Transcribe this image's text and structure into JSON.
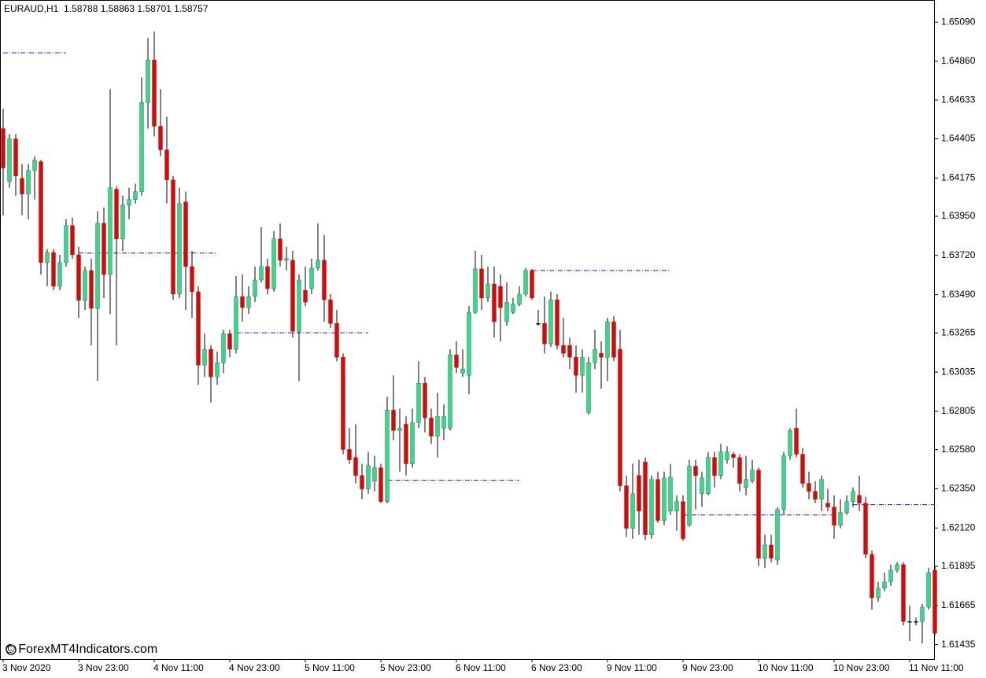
{
  "chart_data": {
    "type": "candlestick",
    "title": "EURAUD,H1  1.58788 1.58863 1.58701 1.58757",
    "watermark": "© ForexMT4Indicators.com",
    "up_color": "#3bd68c",
    "down_color": "#d20a0a",
    "level_color": "#1a1acc",
    "ylim": [
      1.6135,
      1.6522
    ],
    "yticks": [
      {
        "value": 1.6509,
        "label": "1.65090"
      },
      {
        "value": 1.6486,
        "label": "1.64860"
      },
      1.64633,
      1.64405,
      1.64175,
      {
        "value": 1.6395,
        "label": "1.63950"
      },
      {
        "value": 1.6372,
        "label": "1.63720"
      },
      {
        "value": 1.6349,
        "label": "1.63490"
      },
      1.63265,
      1.63035,
      1.62805,
      {
        "value": 1.6258,
        "label": "1.62580"
      },
      {
        "value": 1.6235,
        "label": "1.62350"
      },
      {
        "value": 1.6212,
        "label": "1.62120"
      },
      1.61895,
      1.61665,
      1.61435
    ],
    "categories": [
      "3 Nov 2020",
      null,
      null,
      null,
      null,
      null,
      null,
      null,
      null,
      null,
      null,
      null,
      "3 Nov 23:00",
      null,
      null,
      null,
      null,
      null,
      null,
      null,
      null,
      null,
      null,
      null,
      "4 Nov 11:00",
      null,
      null,
      null,
      null,
      null,
      null,
      null,
      null,
      null,
      null,
      null,
      "4 Nov 23:00",
      null,
      null,
      null,
      null,
      null,
      null,
      null,
      null,
      null,
      null,
      null,
      "5 Nov 11:00",
      null,
      null,
      null,
      null,
      null,
      null,
      null,
      null,
      null,
      null,
      null,
      "5 Nov 23:00",
      null,
      null,
      null,
      null,
      null,
      null,
      null,
      null,
      null,
      null,
      null,
      "6 Nov 11:00",
      null,
      null,
      null,
      null,
      null,
      null,
      null,
      null,
      null,
      null,
      null,
      "6 Nov 23:00",
      null,
      null,
      null,
      null,
      null,
      null,
      null,
      null,
      null,
      null,
      null,
      "9 Nov 11:00",
      null,
      null,
      null,
      null,
      null,
      null,
      null,
      null,
      null,
      null,
      null,
      "9 Nov 23:00",
      null,
      null,
      null,
      null,
      null,
      null,
      null,
      null,
      null,
      null,
      null,
      "10 Nov 11:00",
      null,
      null,
      null,
      null,
      null,
      null,
      null,
      null,
      null,
      null,
      null,
      "10 Nov 23:00",
      null,
      null,
      null,
      null,
      null,
      null,
      null,
      null,
      null,
      null,
      null,
      "11 Nov 11:00",
      null,
      null,
      null,
      null
    ],
    "open": [
      1.64465,
      1.64155,
      1.64405,
      1.64173,
      1.64081,
      1.6422,
      1.64271,
      1.63678,
      1.63738,
      1.63539,
      1.63678,
      1.63896,
      1.63724,
      1.63456,
      1.63632,
      1.63409,
      1.63909,
      1.63608,
      1.64109,
      1.63817,
      1.64016,
      1.64048,
      1.64095,
      1.64618,
      1.64868,
      1.64479,
      1.6434,
      1.64164,
      1.63493,
      1.64034,
      1.63655,
      1.63507,
      1.63076,
      1.63169,
      1.63007,
      1.6309,
      1.63261,
      1.63169,
      1.63479,
      1.63414,
      1.63479,
      1.63576,
      1.63655,
      1.63525,
      1.63817,
      1.63692,
      1.63692,
      1.63275,
      1.63516,
      1.63525,
      1.63646,
      1.63692,
      1.6346,
      1.63321,
      1.63122,
      1.62581,
      1.62534,
      1.62428,
      1.62349,
      1.62395,
      1.62474,
      1.62275,
      1.62812,
      1.62692,
      1.62729,
      1.62497,
      1.62738,
      1.6297,
      1.62766,
      1.62659,
      1.62706,
      1.62706,
      1.63136,
      1.6303,
      1.63016,
      1.63386,
      1.63641,
      1.6347,
      1.63553,
      1.63539,
      1.63331,
      1.63386,
      1.63433,
      1.63493,
      1.63632,
      1.63321,
      1.63321,
      1.63201,
      1.6346,
      1.63192,
      1.63192,
      1.63122,
      1.63016,
      1.62798,
      1.6309,
      1.63145,
      1.63122,
      1.63331,
      1.63169,
      1.62368,
      1.62118,
      1.62428,
      1.62507,
      1.62081,
      1.62405,
      1.62164,
      1.62219,
      1.62219,
      1.62275,
      1.62136,
      1.62483,
      1.62321,
      1.62321,
      1.62534,
      1.62428,
      1.6252,
      1.62553,
      1.62534,
      1.62358,
      1.62395,
      1.6246,
      1.61942,
      1.6202,
      1.61932,
      1.62229,
      1.62544,
      1.62706,
      1.62553,
      1.62382,
      1.62335,
      1.62289,
      1.62266,
      1.62243,
      1.62136,
      1.6221,
      1.62275,
      1.62312,
      1.62266,
      1.61965,
      1.6171,
      1.61766,
      1.61803,
      1.61872,
      1.61905,
      1.61571,
      1.61571,
      1.61571,
      1.61655,
      1.61872
    ],
    "high": [
      1.64581,
      1.64433,
      1.64433,
      1.64257,
      1.64257,
      1.64303,
      1.6428,
      1.63757,
      1.63757,
      1.63724,
      1.63933,
      1.63942,
      1.63771,
      1.63655,
      1.63701,
      1.63979,
      1.64002,
      1.64697,
      1.64127,
      1.64071,
      1.64118,
      1.64141,
      1.64766,
      1.64997,
      1.65035,
      1.64697,
      1.64534,
      1.64187,
      1.64118,
      1.64095,
      1.63747,
      1.63539,
      1.63261,
      1.63192,
      1.63155,
      1.63284,
      1.63284,
      1.63599,
      1.63608,
      1.63539,
      1.63655,
      1.63886,
      1.63701,
      1.63863,
      1.63909,
      1.63771,
      1.63747,
      1.63608,
      1.63655,
      1.63701,
      1.63909,
      1.6384,
      1.63493,
      1.634,
      1.63145,
      1.62706,
      1.62729,
      1.62497,
      1.62567,
      1.62544,
      1.62497,
      1.62891,
      1.63016,
      1.62821,
      1.62775,
      1.62821,
      1.63099,
      1.63007,
      1.62821,
      1.62914,
      1.62845,
      1.63169,
      1.63215,
      1.63169,
      1.63423,
      1.63747,
      1.63724,
      1.63655,
      1.63655,
      1.63608,
      1.63562,
      1.6347,
      1.63539,
      1.63646,
      1.63641,
      1.634,
      1.63479,
      1.63507,
      1.63493,
      1.63354,
      1.63238,
      1.63192,
      1.63169,
      1.63122,
      1.63284,
      1.63215,
      1.63354,
      1.63363,
      1.63284,
      1.62428,
      1.62497,
      1.6252,
      1.62534,
      1.62428,
      1.62451,
      1.62451,
      1.62497,
      1.62312,
      1.62312,
      1.6252,
      1.6252,
      1.62451,
      1.62567,
      1.62567,
      1.62613,
      1.62599,
      1.62567,
      1.62553,
      1.62544,
      1.6252,
      1.62474,
      1.62081,
      1.62081,
      1.62243,
      1.62567,
      1.62706,
      1.62821,
      1.6259,
      1.62451,
      1.62395,
      1.62428,
      1.62349,
      1.62312,
      1.62289,
      1.62312,
      1.62358,
      1.62428,
      1.62303,
      1.61988,
      1.61803,
      1.61858,
      1.61905,
      1.61919,
      1.61919,
      1.61664,
      1.61594,
      1.61673,
      1.61886,
      1.61895
    ],
    "low": [
      1.63956,
      1.64118,
      1.64071,
      1.63956,
      1.63933,
      1.64048,
      1.63608,
      1.63539,
      1.63516,
      1.63516,
      1.63655,
      1.63701,
      1.63354,
      1.634,
      1.63192,
      1.62983,
      1.6347,
      1.63377,
      1.63192,
      1.63747,
      1.63933,
      1.64025,
      1.64071,
      1.64465,
      1.64419,
      1.64303,
      1.64025,
      1.6346,
      1.6347,
      1.634,
      1.63354,
      1.6296,
      1.63007,
      1.62858,
      1.6296,
      1.6303,
      1.63122,
      1.63145,
      1.63331,
      1.63377,
      1.63446,
      1.63562,
      1.63493,
      1.63507,
      1.63655,
      1.63632,
      1.63238,
      1.62983,
      1.63423,
      1.63493,
      1.63632,
      1.63331,
      1.63294,
      1.63099,
      1.62553,
      1.62497,
      1.62382,
      1.62289,
      1.62321,
      1.62335,
      1.62266,
      1.62266,
      1.62636,
      1.62451,
      1.62428,
      1.62474,
      1.62706,
      1.62682,
      1.62613,
      1.62534,
      1.62636,
      1.62692,
      1.6303,
      1.63007,
      1.62905,
      1.63377,
      1.634,
      1.63446,
      1.63238,
      1.63215,
      1.63308,
      1.63377,
      1.63423,
      1.63479,
      1.6346,
      1.63308,
      1.63145,
      1.63183,
      1.63169,
      1.63122,
      1.63053,
      1.62914,
      1.62914,
      1.62784,
      1.63053,
      1.62937,
      1.62983,
      1.63099,
      1.62335,
      1.62067,
      1.62057,
      1.62081,
      1.62048,
      1.62057,
      1.6215,
      1.62136,
      1.62196,
      1.62104,
      1.62044,
      1.62127,
      1.62229,
      1.62243,
      1.62312,
      1.62358,
      1.62405,
      1.62497,
      1.62474,
      1.62335,
      1.62312,
      1.62382,
      1.61895,
      1.61886,
      1.61919,
      1.61905,
      1.62196,
      1.6252,
      1.62534,
      1.62358,
      1.62289,
      1.62266,
      1.62219,
      1.62219,
      1.62057,
      1.62118,
      1.62196,
      1.62243,
      1.62219,
      1.61942,
      1.61641,
      1.61687,
      1.61747,
      1.6178,
      1.61858,
      1.61548,
      1.61456,
      1.61548,
      1.61442,
      1.61641,
      1.61488
    ],
    "close": [
      1.64234,
      1.64405,
      1.64187,
      1.64081,
      1.6422,
      1.6428,
      1.63678,
      1.63738,
      1.63539,
      1.63678,
      1.63896,
      1.63724,
      1.63456,
      1.63632,
      1.63409,
      1.63909,
      1.63608,
      1.64118,
      1.63817,
      1.64016,
      1.64048,
      1.64095,
      1.64618,
      1.64868,
      1.64479,
      1.6434,
      1.64164,
      1.63493,
      1.64025,
      1.63655,
      1.63507,
      1.63076,
      1.63169,
      1.63007,
      1.6309,
      1.63261,
      1.63169,
      1.63479,
      1.63414,
      1.63479,
      1.63576,
      1.63655,
      1.63525,
      1.63817,
      1.63692,
      1.63701,
      1.63275,
      1.63576,
      1.63446,
      1.63646,
      1.63692,
      1.6346,
      1.63321,
      1.63122,
      1.62581,
      1.6252,
      1.62428,
      1.62349,
      1.62488,
      1.62474,
      1.62275,
      1.62812,
      1.62692,
      1.62706,
      1.62497,
      1.62738,
      1.6297,
      1.62766,
      1.62659,
      1.62775,
      1.62775,
      1.63136,
      1.63062,
      1.63053,
      1.63386,
      1.63641,
      1.6347,
      1.63553,
      1.63331,
      1.63414,
      1.63446,
      1.63433,
      1.63493,
      1.63632,
      1.6347,
      1.63321,
      1.63201,
      1.6346,
      1.63192,
      1.63145,
      1.63122,
      1.63016,
      1.63122,
      1.6309,
      1.63169,
      1.63122,
      1.63331,
      1.63122,
      1.62368,
      1.62118,
      1.62321,
      1.62219,
      1.62081,
      1.62405,
      1.62164,
      1.62414,
      1.62419,
      1.62275,
      1.62057,
      1.62483,
      1.62428,
      1.62414,
      1.62534,
      1.62428,
      1.62567,
      1.62567,
      1.62534,
      1.62382,
      1.62405,
      1.6246,
      1.61942,
      1.6202,
      1.61942,
      1.62229,
      1.62544,
      1.62692,
      1.62553,
      1.62382,
      1.62335,
      1.62289,
      1.62405,
      1.62243,
      1.62136,
      1.6221,
      1.62275,
      1.62335,
      1.62266,
      1.61965,
      1.6171,
      1.61766,
      1.61803,
      1.61872,
      1.61905,
      1.61571,
      1.61571,
      1.61571,
      1.61655,
      1.61858,
      1.61502
    ],
    "levels": [
      {
        "value": 1.6491,
        "from": 0,
        "to": 10
      },
      {
        "value": 1.63734,
        "from": 12,
        "to": 34
      },
      {
        "value": 1.63266,
        "from": 37,
        "to": 58
      },
      {
        "value": 1.624,
        "from": 61,
        "to": 82
      },
      {
        "value": 1.63632,
        "from": 84,
        "to": 106
      },
      {
        "value": 1.62196,
        "from": 108,
        "to": 132
      },
      {
        "value": 1.62257,
        "from": 135,
        "to": 148
      }
    ]
  }
}
